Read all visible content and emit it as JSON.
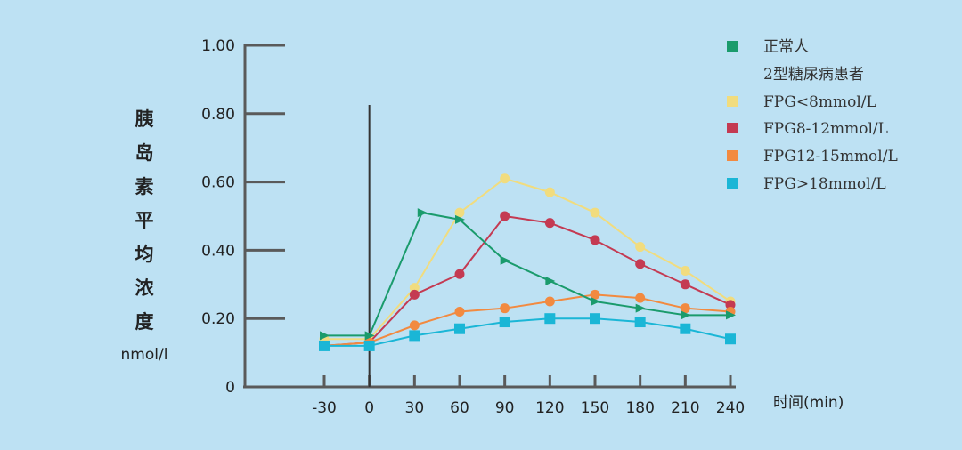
{
  "chart_data": {
    "type": "line",
    "title": "",
    "ylabel": "胰岛素平均浓度",
    "yunit": "nmol/l",
    "xlabel": "时间(min)",
    "x": [
      -30,
      0,
      30,
      60,
      90,
      120,
      150,
      180,
      210,
      240
    ],
    "x_tick_labels": [
      "-30",
      "0",
      "30",
      "60",
      "90",
      "120",
      "150",
      "180",
      "210",
      "240"
    ],
    "y_tick_values": [
      0,
      0.2,
      0.4,
      0.6,
      0.8,
      1.0
    ],
    "y_tick_labels": [
      "0",
      "0.20",
      "0.40",
      "0.60",
      "0.80",
      "1.00"
    ],
    "ylim": [
      0,
      1.0
    ],
    "reference_line_x": 0,
    "legend_placement": "top-right",
    "legend_subtitle": "2型糖尿病患者",
    "series": [
      {
        "name": "正常人",
        "color": "#1a9b6c",
        "marker": "triangle",
        "x": [
          -30,
          0,
          35,
          60,
          90,
          120,
          150,
          180,
          210,
          240
        ],
        "values": [
          0.15,
          0.15,
          0.51,
          0.49,
          0.37,
          0.31,
          0.25,
          0.23,
          0.21,
          0.21
        ]
      },
      {
        "name": "FPG<8mmol/L",
        "color": "#f1dc7e",
        "marker": "circle",
        "x": [
          -30,
          0,
          30,
          60,
          90,
          120,
          150,
          180,
          210,
          240
        ],
        "values": [
          0.14,
          0.14,
          0.29,
          0.51,
          0.61,
          0.57,
          0.51,
          0.41,
          0.34,
          0.25
        ]
      },
      {
        "name": "FPG8-12mmol/L",
        "color": "#c43a52",
        "marker": "circle",
        "x": [
          -30,
          0,
          30,
          60,
          90,
          120,
          150,
          180,
          210,
          240
        ],
        "values": [
          0.12,
          0.13,
          0.27,
          0.33,
          0.5,
          0.48,
          0.43,
          0.36,
          0.3,
          0.24
        ]
      },
      {
        "name": "FPG12-15mmol/L",
        "color": "#f28a40",
        "marker": "circle",
        "x": [
          -30,
          0,
          30,
          60,
          90,
          120,
          150,
          180,
          210,
          240
        ],
        "values": [
          0.12,
          0.13,
          0.18,
          0.22,
          0.23,
          0.25,
          0.27,
          0.26,
          0.23,
          0.22
        ]
      },
      {
        "name": "FPG>18mmol/L",
        "color": "#1ab6d6",
        "marker": "square",
        "x": [
          -30,
          0,
          30,
          60,
          90,
          120,
          150,
          180,
          210,
          240
        ],
        "values": [
          0.12,
          0.12,
          0.15,
          0.17,
          0.19,
          0.2,
          0.2,
          0.19,
          0.17,
          0.14
        ]
      }
    ]
  }
}
